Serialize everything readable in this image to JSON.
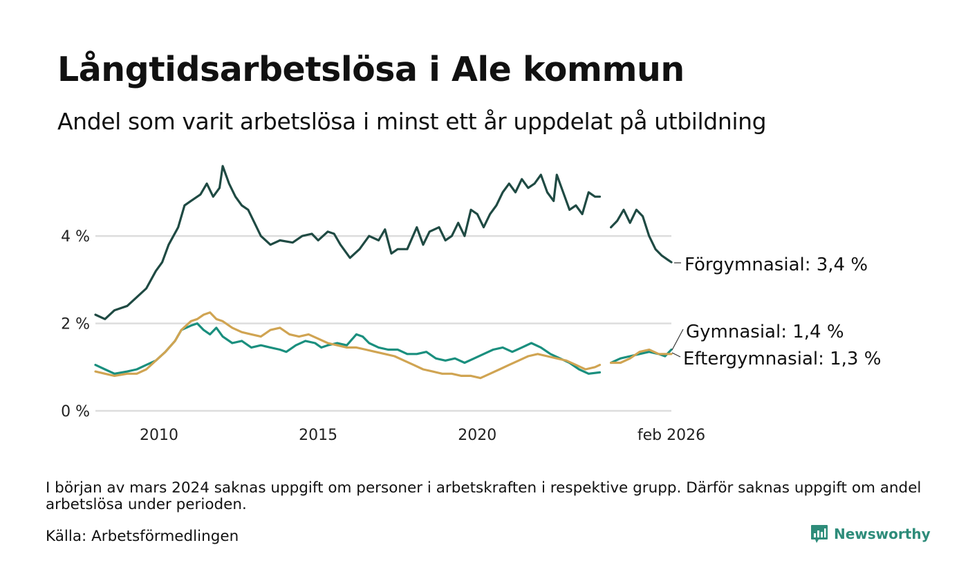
{
  "header": {
    "title": "Långtidsarbetslösa i Ale kommun",
    "subtitle": "Andel som varit arbetslösa i minst ett år uppdelat på utbildning"
  },
  "footer": {
    "note": "I början av mars 2024 saknas uppgift om personer i arbetskraften i respektive grupp. Därför saknas uppgift om andel arbetslösa under perioden.",
    "source": "Källa: Arbetsförmedlingen",
    "brand": "Newsworthy"
  },
  "colors": {
    "forgymnasial": "#1f4a43",
    "gymnasial": "#1a8f7e",
    "eftergymnasial": "#d0a452",
    "grid": "#dddddd",
    "brand": "#2e8c7a"
  },
  "chart_data": {
    "type": "line",
    "title": "Långtidsarbetslösa i Ale kommun",
    "subtitle": "Andel som varit arbetslösa i minst ett år uppdelat på utbildning",
    "xlabel": "",
    "ylabel": "",
    "x_unit": "year (decimal)",
    "xlim": [
      2008.0,
      2026.1
    ],
    "ylim": [
      0,
      6
    ],
    "grid": true,
    "y_ticks": [
      {
        "value": 0,
        "label": "0 %"
      },
      {
        "value": 2,
        "label": "2 %"
      },
      {
        "value": 4,
        "label": "4 %"
      }
    ],
    "x_ticks": [
      {
        "value": 2010.0,
        "label": "2010"
      },
      {
        "value": 2015.0,
        "label": "2015"
      },
      {
        "value": 2020.0,
        "label": "2020"
      },
      {
        "value": 2026.1,
        "label": "feb 2026"
      }
    ],
    "gap": {
      "from": 2023.85,
      "to": 2024.2,
      "note": "Uppgift saknas mars 2024"
    },
    "series": [
      {
        "name": "Förgymnasial",
        "color": "#1f4a43",
        "end_label": "Förgymnasial: 3,4 %",
        "points": [
          [
            2008.0,
            2.2
          ],
          [
            2008.3,
            2.1
          ],
          [
            2008.6,
            2.3
          ],
          [
            2009.0,
            2.4
          ],
          [
            2009.3,
            2.6
          ],
          [
            2009.6,
            2.8
          ],
          [
            2009.9,
            3.2
          ],
          [
            2010.1,
            3.4
          ],
          [
            2010.3,
            3.8
          ],
          [
            2010.6,
            4.2
          ],
          [
            2010.8,
            4.7
          ],
          [
            2011.0,
            4.8
          ],
          [
            2011.3,
            4.95
          ],
          [
            2011.5,
            5.2
          ],
          [
            2011.7,
            4.9
          ],
          [
            2011.9,
            5.1
          ],
          [
            2012.0,
            5.6
          ],
          [
            2012.2,
            5.2
          ],
          [
            2012.4,
            4.9
          ],
          [
            2012.6,
            4.7
          ],
          [
            2012.8,
            4.6
          ],
          [
            2013.0,
            4.3
          ],
          [
            2013.2,
            4.0
          ],
          [
            2013.5,
            3.8
          ],
          [
            2013.8,
            3.9
          ],
          [
            2014.2,
            3.85
          ],
          [
            2014.5,
            4.0
          ],
          [
            2014.8,
            4.05
          ],
          [
            2015.0,
            3.9
          ],
          [
            2015.3,
            4.1
          ],
          [
            2015.5,
            4.05
          ],
          [
            2015.7,
            3.8
          ],
          [
            2016.0,
            3.5
          ],
          [
            2016.3,
            3.7
          ],
          [
            2016.6,
            4.0
          ],
          [
            2016.9,
            3.9
          ],
          [
            2017.1,
            4.15
          ],
          [
            2017.3,
            3.6
          ],
          [
            2017.5,
            3.7
          ],
          [
            2017.8,
            3.7
          ],
          [
            2018.1,
            4.2
          ],
          [
            2018.3,
            3.8
          ],
          [
            2018.5,
            4.1
          ],
          [
            2018.8,
            4.2
          ],
          [
            2019.0,
            3.9
          ],
          [
            2019.2,
            4.0
          ],
          [
            2019.4,
            4.3
          ],
          [
            2019.6,
            4.0
          ],
          [
            2019.8,
            4.6
          ],
          [
            2020.0,
            4.5
          ],
          [
            2020.2,
            4.2
          ],
          [
            2020.4,
            4.5
          ],
          [
            2020.6,
            4.7
          ],
          [
            2020.8,
            5.0
          ],
          [
            2021.0,
            5.2
          ],
          [
            2021.2,
            5.0
          ],
          [
            2021.4,
            5.3
          ],
          [
            2021.6,
            5.1
          ],
          [
            2021.8,
            5.2
          ],
          [
            2022.0,
            5.4
          ],
          [
            2022.2,
            5.0
          ],
          [
            2022.4,
            4.8
          ],
          [
            2022.5,
            5.4
          ],
          [
            2022.7,
            5.0
          ],
          [
            2022.9,
            4.6
          ],
          [
            2023.1,
            4.7
          ],
          [
            2023.3,
            4.5
          ],
          [
            2023.5,
            5.0
          ],
          [
            2023.7,
            4.9
          ],
          [
            2023.85,
            4.9
          ],
          [
            2024.2,
            4.2
          ],
          [
            2024.4,
            4.35
          ],
          [
            2024.6,
            4.6
          ],
          [
            2024.8,
            4.3
          ],
          [
            2025.0,
            4.6
          ],
          [
            2025.2,
            4.45
          ],
          [
            2025.4,
            4.0
          ],
          [
            2025.6,
            3.7
          ],
          [
            2025.8,
            3.55
          ],
          [
            2026.0,
            3.45
          ],
          [
            2026.1,
            3.4
          ]
        ]
      },
      {
        "name": "Gymnasial",
        "color": "#1a8f7e",
        "end_label": "Gymnasial: 1,4 %",
        "points": [
          [
            2008.0,
            1.05
          ],
          [
            2008.3,
            0.95
          ],
          [
            2008.6,
            0.85
          ],
          [
            2009.0,
            0.9
          ],
          [
            2009.3,
            0.95
          ],
          [
            2009.6,
            1.05
          ],
          [
            2009.9,
            1.15
          ],
          [
            2010.2,
            1.35
          ],
          [
            2010.5,
            1.6
          ],
          [
            2010.7,
            1.85
          ],
          [
            2011.0,
            1.95
          ],
          [
            2011.2,
            2.0
          ],
          [
            2011.4,
            1.85
          ],
          [
            2011.6,
            1.75
          ],
          [
            2011.8,
            1.9
          ],
          [
            2012.0,
            1.7
          ],
          [
            2012.3,
            1.55
          ],
          [
            2012.6,
            1.6
          ],
          [
            2012.9,
            1.45
          ],
          [
            2013.2,
            1.5
          ],
          [
            2013.5,
            1.45
          ],
          [
            2013.8,
            1.4
          ],
          [
            2014.0,
            1.35
          ],
          [
            2014.3,
            1.5
          ],
          [
            2014.6,
            1.6
          ],
          [
            2014.9,
            1.55
          ],
          [
            2015.1,
            1.45
          ],
          [
            2015.3,
            1.5
          ],
          [
            2015.6,
            1.55
          ],
          [
            2015.9,
            1.5
          ],
          [
            2016.2,
            1.75
          ],
          [
            2016.4,
            1.7
          ],
          [
            2016.6,
            1.55
          ],
          [
            2016.9,
            1.45
          ],
          [
            2017.2,
            1.4
          ],
          [
            2017.5,
            1.4
          ],
          [
            2017.8,
            1.3
          ],
          [
            2018.1,
            1.3
          ],
          [
            2018.4,
            1.35
          ],
          [
            2018.7,
            1.2
          ],
          [
            2019.0,
            1.15
          ],
          [
            2019.3,
            1.2
          ],
          [
            2019.6,
            1.1
          ],
          [
            2019.9,
            1.2
          ],
          [
            2020.2,
            1.3
          ],
          [
            2020.5,
            1.4
          ],
          [
            2020.8,
            1.45
          ],
          [
            2021.1,
            1.35
          ],
          [
            2021.4,
            1.45
          ],
          [
            2021.7,
            1.55
          ],
          [
            2022.0,
            1.45
          ],
          [
            2022.3,
            1.3
          ],
          [
            2022.6,
            1.2
          ],
          [
            2022.9,
            1.1
          ],
          [
            2023.2,
            0.95
          ],
          [
            2023.5,
            0.85
          ],
          [
            2023.85,
            0.88
          ],
          [
            2024.2,
            1.1
          ],
          [
            2024.5,
            1.2
          ],
          [
            2024.8,
            1.25
          ],
          [
            2025.1,
            1.3
          ],
          [
            2025.4,
            1.35
          ],
          [
            2025.7,
            1.3
          ],
          [
            2025.9,
            1.25
          ],
          [
            2026.1,
            1.4
          ]
        ]
      },
      {
        "name": "Eftergymnasial",
        "color": "#d0a452",
        "end_label": "Eftergymnasial: 1,3 %",
        "points": [
          [
            2008.0,
            0.9
          ],
          [
            2008.3,
            0.85
          ],
          [
            2008.6,
            0.8
          ],
          [
            2009.0,
            0.85
          ],
          [
            2009.3,
            0.85
          ],
          [
            2009.6,
            0.95
          ],
          [
            2009.9,
            1.15
          ],
          [
            2010.2,
            1.35
          ],
          [
            2010.5,
            1.6
          ],
          [
            2010.7,
            1.85
          ],
          [
            2011.0,
            2.05
          ],
          [
            2011.2,
            2.1
          ],
          [
            2011.4,
            2.2
          ],
          [
            2011.6,
            2.25
          ],
          [
            2011.8,
            2.1
          ],
          [
            2012.0,
            2.05
          ],
          [
            2012.3,
            1.9
          ],
          [
            2012.6,
            1.8
          ],
          [
            2012.9,
            1.75
          ],
          [
            2013.2,
            1.7
          ],
          [
            2013.5,
            1.85
          ],
          [
            2013.8,
            1.9
          ],
          [
            2014.1,
            1.75
          ],
          [
            2014.4,
            1.7
          ],
          [
            2014.7,
            1.75
          ],
          [
            2015.0,
            1.65
          ],
          [
            2015.3,
            1.55
          ],
          [
            2015.6,
            1.5
          ],
          [
            2015.9,
            1.45
          ],
          [
            2016.2,
            1.45
          ],
          [
            2016.5,
            1.4
          ],
          [
            2016.8,
            1.35
          ],
          [
            2017.1,
            1.3
          ],
          [
            2017.4,
            1.25
          ],
          [
            2017.7,
            1.15
          ],
          [
            2018.0,
            1.05
          ],
          [
            2018.3,
            0.95
          ],
          [
            2018.6,
            0.9
          ],
          [
            2018.9,
            0.85
          ],
          [
            2019.2,
            0.85
          ],
          [
            2019.5,
            0.8
          ],
          [
            2019.8,
            0.8
          ],
          [
            2020.1,
            0.75
          ],
          [
            2020.4,
            0.85
          ],
          [
            2020.7,
            0.95
          ],
          [
            2021.0,
            1.05
          ],
          [
            2021.3,
            1.15
          ],
          [
            2021.6,
            1.25
          ],
          [
            2021.9,
            1.3
          ],
          [
            2022.2,
            1.25
          ],
          [
            2022.5,
            1.2
          ],
          [
            2022.8,
            1.15
          ],
          [
            2023.1,
            1.05
          ],
          [
            2023.4,
            0.95
          ],
          [
            2023.7,
            1.0
          ],
          [
            2023.85,
            1.05
          ],
          [
            2024.2,
            1.1
          ],
          [
            2024.5,
            1.1
          ],
          [
            2024.8,
            1.2
          ],
          [
            2025.1,
            1.35
          ],
          [
            2025.4,
            1.4
          ],
          [
            2025.7,
            1.3
          ],
          [
            2025.9,
            1.3
          ],
          [
            2026.1,
            1.3
          ]
        ]
      }
    ]
  }
}
